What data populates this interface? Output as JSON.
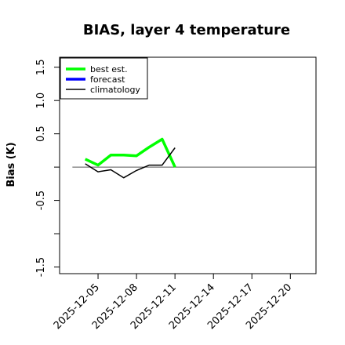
{
  "chart_data": {
    "type": "line",
    "title": "BIAS, layer 4 temperature",
    "xlabel": "",
    "ylabel": "Bias (K)",
    "ylim": [
      -1.6,
      1.65
    ],
    "xlim": [
      "2025-12-02",
      "2025-12-22"
    ],
    "y_ticks": [
      "1.5",
      "1.0",
      "0.5",
      "",
      "-0.5",
      "",
      "-1.5"
    ],
    "y_tick_values": [
      1.5,
      1.0,
      0.5,
      0.0,
      -0.5,
      -1.0,
      -1.5
    ],
    "x_ticks": [
      "2025-12-05",
      "2025-12-08",
      "2025-12-11",
      "2025-12-14",
      "2025-12-17",
      "2025-12-20"
    ],
    "highlight_tick": "2025-12-11",
    "highlight_color": "#228b22",
    "zero_line_start": "2025-12-03",
    "zero_line_end": "2025-12-22",
    "legend_position": "top-left",
    "series": [
      {
        "name": "best est.",
        "color": "#00ff00",
        "x": [
          "2025-12-04",
          "2025-12-05",
          "2025-12-06",
          "2025-12-07",
          "2025-12-08",
          "2025-12-09",
          "2025-12-10",
          "2025-12-11"
        ],
        "y": [
          0.12,
          0.03,
          0.18,
          0.18,
          0.17,
          0.3,
          0.42,
          0.0
        ]
      },
      {
        "name": "forecast",
        "color": "#0000ff",
        "x": [],
        "y": []
      },
      {
        "name": "climatology",
        "color": "#000000",
        "x": [
          "2025-12-04",
          "2025-12-05",
          "2025-12-06",
          "2025-12-07",
          "2025-12-08",
          "2025-12-09",
          "2025-12-10",
          "2025-12-11"
        ],
        "y": [
          0.05,
          -0.07,
          -0.04,
          -0.16,
          -0.05,
          0.03,
          0.03,
          0.29
        ]
      }
    ]
  }
}
